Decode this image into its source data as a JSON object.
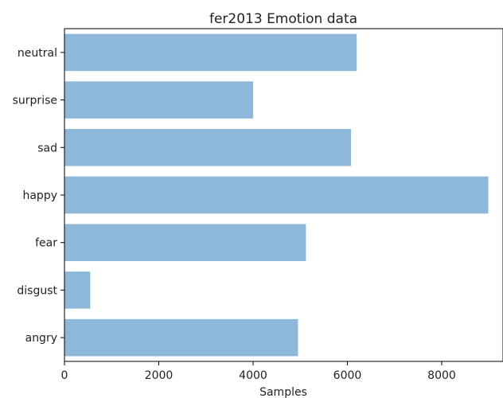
{
  "chart_data": {
    "type": "bar",
    "orientation": "horizontal",
    "title": "fer2013 Emotion data",
    "xlabel": "Samples",
    "ylabel": "",
    "categories": [
      "angry",
      "disgust",
      "fear",
      "happy",
      "sad",
      "surprise",
      "neutral"
    ],
    "values": [
      4953,
      547,
      5121,
      8989,
      6077,
      4002,
      6198
    ],
    "xlim": [
      0,
      9300
    ],
    "xticks": [
      0,
      2000,
      4000,
      6000,
      8000
    ],
    "xtick_labels": [
      "0",
      "2000",
      "4000",
      "6000",
      "8000"
    ],
    "bar_color": "#8db8da",
    "grid": false,
    "legend": "none"
  }
}
